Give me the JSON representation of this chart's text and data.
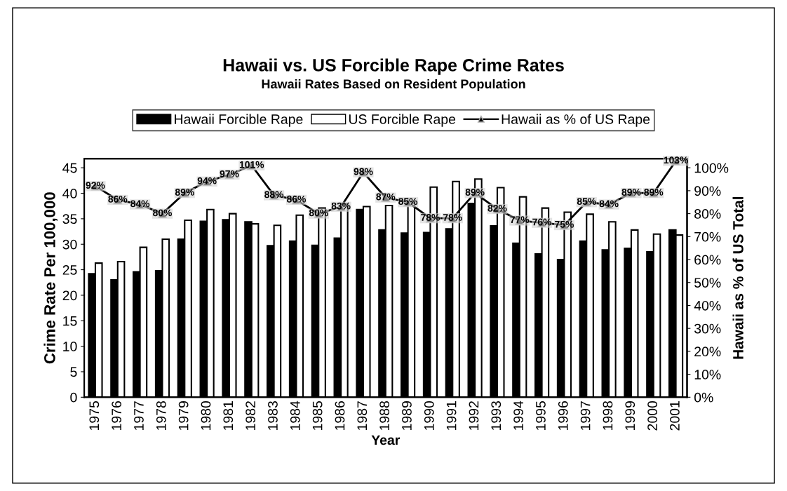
{
  "chart_data": {
    "type": "bar",
    "title": "Hawaii vs. US Forcible Rape Crime Rates",
    "subtitle": "Hawaii Rates Based on Resident Population",
    "xlabel": "Year",
    "ylabel": "Crime Rate Per 100,000",
    "y2label": "Hawaii as % of US Total",
    "categories": [
      "1975",
      "1976",
      "1977",
      "1978",
      "1979",
      "1980",
      "1981",
      "1982",
      "1983",
      "1984",
      "1985",
      "1986",
      "1987",
      "1988",
      "1989",
      "1990",
      "1991",
      "1992",
      "1993",
      "1994",
      "1995",
      "1996",
      "1997",
      "1998",
      "1999",
      "2000",
      "2001"
    ],
    "series": [
      {
        "name": "Hawaii Forcible Rape",
        "color": "#000000",
        "values": [
          24.2,
          23.0,
          24.6,
          24.8,
          31.0,
          34.5,
          34.8,
          34.4,
          29.7,
          30.6,
          29.8,
          31.2,
          36.8,
          32.8,
          32.2,
          32.3,
          33.0,
          38.0,
          33.6,
          30.2,
          28.1,
          27.0,
          30.6,
          28.9,
          29.2,
          28.5,
          32.8
        ]
      },
      {
        "name": "US Forcible Rape",
        "color": "#ffffff",
        "values": [
          26.3,
          26.6,
          29.4,
          31.0,
          34.7,
          36.8,
          36.0,
          34.0,
          33.7,
          35.7,
          37.1,
          37.9,
          37.4,
          37.6,
          38.1,
          41.2,
          42.3,
          42.8,
          41.1,
          39.3,
          37.1,
          36.3,
          35.9,
          34.4,
          32.8,
          32.0,
          31.8
        ]
      },
      {
        "name": "Hawaii as % of US Rape",
        "type": "line",
        "axis": "y2",
        "color": "#000000",
        "marker": "triangle",
        "values": [
          92,
          86,
          84,
          80,
          89,
          94,
          97,
          101,
          88,
          86,
          80,
          83,
          98,
          87,
          85,
          78,
          78,
          89,
          82,
          77,
          76,
          75,
          85,
          84,
          89,
          89,
          103
        ],
        "value_labels": [
          "92%",
          "86%",
          "84%",
          "80%",
          "89%",
          "94%",
          "97%",
          "101%",
          "88%",
          "86%",
          "80%",
          "83%",
          "98%",
          "87%",
          "85%",
          "78%",
          "78%",
          "89%",
          "82%",
          "77%",
          "76%",
          "75%",
          "85%",
          "84%",
          "89%",
          "89%",
          "103%"
        ]
      }
    ],
    "ylim": [
      0,
      46.8
    ],
    "yticks": [
      0,
      5,
      10,
      15,
      20,
      25,
      30,
      35,
      40,
      45
    ],
    "y2lim": [
      0,
      104
    ],
    "y2ticks": [
      {
        "value": 0,
        "label": "0%"
      },
      {
        "value": 10,
        "label": "10%"
      },
      {
        "value": 20,
        "label": "20%"
      },
      {
        "value": 30,
        "label": "30%"
      },
      {
        "value": 40,
        "label": "40%"
      },
      {
        "value": 50,
        "label": "50%"
      },
      {
        "value": 60,
        "label": "60%"
      },
      {
        "value": 70,
        "label": "70%"
      },
      {
        "value": 80,
        "label": "80%"
      },
      {
        "value": 90,
        "label": "90%"
      },
      {
        "value": 100,
        "label": "100%"
      }
    ],
    "grid": false,
    "legend": "top"
  }
}
